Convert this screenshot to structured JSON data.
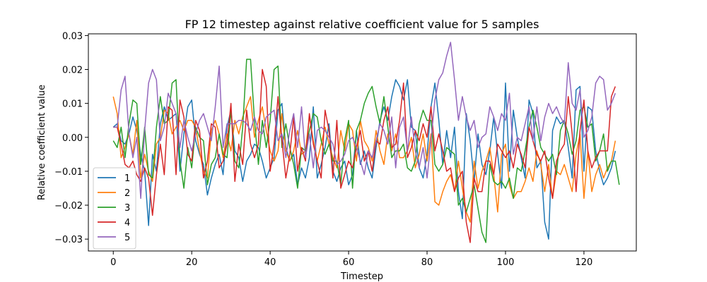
{
  "chart_data": {
    "type": "line",
    "title": "FP 12 timestep against relative coefficient value for 5 samples",
    "xlabel": "Timestep",
    "ylabel": "Relative coefficient value",
    "xlim": [
      -6.35,
      133.35
    ],
    "ylim": [
      -0.0335,
      0.0305
    ],
    "xticks": [
      0,
      20,
      40,
      60,
      80,
      100,
      120
    ],
    "yticks": [
      -0.03,
      -0.02,
      -0.01,
      0.0,
      0.01,
      0.02,
      0.03
    ],
    "xtick_labels": [
      "0",
      "20",
      "40",
      "60",
      "80",
      "100",
      "120"
    ],
    "ytick_labels": [
      "−0.03",
      "−0.02",
      "−0.01",
      "0.00",
      "0.01",
      "0.02",
      "0.03"
    ],
    "grid": false,
    "legend_position": "lower-left",
    "series": [
      {
        "name": "1",
        "color": "#1f77b4",
        "values": [
          0.003,
          0.004,
          -0.001,
          -0.002,
          0.001,
          0.006,
          0.002,
          -0.005,
          -0.01,
          -0.026,
          -0.005,
          -0.01,
          0.004,
          0.009,
          0.005,
          0.006,
          0.007,
          -0.01,
          0.001,
          0.009,
          0.011,
          -0.001,
          -0.005,
          -0.008,
          -0.017,
          -0.012,
          -0.008,
          -0.005,
          -0.011,
          0.003,
          0.008,
          -0.004,
          -0.006,
          -0.013,
          -0.007,
          -0.005,
          -0.002,
          -0.003,
          -0.007,
          -0.012,
          -0.009,
          -0.006,
          0.008,
          0.01,
          -0.003,
          -0.007,
          -0.005,
          -0.014,
          -0.009,
          -0.012,
          -0.006,
          0.009,
          -0.012,
          -0.008,
          -0.003,
          0.004,
          -0.01,
          -0.013,
          -0.009,
          -0.007,
          -0.014,
          -0.011,
          0.002,
          -0.008,
          -0.004,
          -0.009,
          -0.012,
          -0.003,
          0.005,
          0.009,
          0.005,
          0.012,
          0.017,
          0.015,
          0.011,
          0.017,
          0.003,
          0.002,
          -0.009,
          -0.012,
          -0.005,
          0.009,
          0.016,
          0.005,
          -0.008,
          0.002,
          -0.006,
          0.003,
          -0.016,
          -0.024,
          0.007,
          -0.001,
          -0.013,
          0.001,
          -0.008,
          -0.011,
          -0.004,
          0.006,
          -0.005,
          -0.015,
          0.016,
          -0.01,
          0.008,
          0.0,
          -0.006,
          -0.012,
          0.011,
          0.007,
          -0.009,
          -0.007,
          -0.025,
          -0.03,
          0.002,
          0.006,
          0.004,
          0.005,
          -0.003,
          -0.012,
          0.014,
          0.015,
          -0.01,
          0.009,
          0.008,
          -0.004,
          -0.01,
          -0.014,
          -0.012,
          -0.009,
          -0.004
        ]
      },
      {
        "name": "2",
        "color": "#ff7f0e",
        "values": [
          0.012,
          0.007,
          -0.006,
          -0.003,
          0.001,
          -0.005,
          0.005,
          -0.012,
          -0.005,
          -0.01,
          -0.013,
          -0.002,
          0.0,
          0.008,
          0.007,
          0.001,
          0.003,
          0.005,
          0.002,
          0.005,
          0.005,
          0.003,
          -0.004,
          -0.01,
          -0.012,
          0.002,
          0.005,
          0.001,
          -0.006,
          0.001,
          -0.004,
          0.005,
          0.001,
          0.006,
          0.009,
          0.012,
          0.0,
          0.005,
          0.009,
          0.002,
          -0.004,
          -0.007,
          -0.004,
          0.007,
          -0.004,
          -0.007,
          -0.004,
          0.002,
          -0.005,
          -0.004,
          0.006,
          -0.001,
          -0.007,
          -0.002,
          0.003,
          -0.002,
          -0.006,
          -0.009,
          0.002,
          -0.004,
          0.004,
          0.002,
          -0.007,
          0.005,
          -0.001,
          -0.003,
          -0.007,
          0.002,
          -0.004,
          -0.008,
          0.001,
          -0.004,
          0.001,
          -0.006,
          -0.006,
          -0.004,
          0.0,
          -0.009,
          -0.005,
          0.001,
          -0.007,
          0.001,
          -0.019,
          -0.02,
          -0.016,
          -0.013,
          -0.011,
          -0.016,
          -0.007,
          -0.015,
          -0.022,
          -0.025,
          -0.007,
          -0.015,
          -0.01,
          -0.007,
          -0.003,
          -0.011,
          -0.022,
          -0.005,
          -0.002,
          -0.014,
          -0.018,
          -0.016,
          -0.016,
          -0.013,
          -0.009,
          -0.013,
          -0.004,
          -0.008,
          -0.016,
          -0.008,
          -0.018,
          -0.01,
          -0.011,
          -0.008,
          -0.012,
          -0.016,
          -0.005,
          0.001,
          -0.018,
          -0.004,
          -0.016,
          -0.011,
          -0.008,
          -0.012,
          -0.009,
          -0.007,
          -0.001
        ]
      },
      {
        "name": "3",
        "color": "#2ca02c",
        "values": [
          -0.001,
          -0.003,
          0.003,
          -0.006,
          0.004,
          0.011,
          0.01,
          -0.008,
          0.003,
          -0.011,
          -0.012,
          0.003,
          0.012,
          0.004,
          0.005,
          0.016,
          0.017,
          -0.007,
          -0.015,
          -0.003,
          -0.009,
          0.003,
          0.0,
          -0.001,
          -0.014,
          -0.008,
          -0.006,
          0.001,
          -0.005,
          -0.006,
          0.008,
          -0.007,
          -0.009,
          0.003,
          0.023,
          0.023,
          0.005,
          -0.008,
          0.005,
          -0.003,
          0.005,
          0.02,
          0.021,
          -0.003,
          0.004,
          -0.003,
          -0.008,
          -0.015,
          -0.003,
          -0.004,
          0.002,
          0.007,
          0.006,
          -0.001,
          -0.005,
          -0.002,
          -0.007,
          -0.007,
          -0.014,
          -0.001,
          0.005,
          -0.015,
          0.002,
          0.005,
          0.01,
          0.013,
          0.015,
          0.009,
          0.004,
          0.012,
          0.003,
          -0.006,
          -0.004,
          -0.004,
          -0.002,
          -0.009,
          -0.01,
          -0.007,
          0.004,
          0.008,
          0.005,
          0.005,
          -0.008,
          -0.01,
          -0.008,
          -0.003,
          -0.004,
          -0.005,
          -0.02,
          -0.018,
          -0.022,
          -0.018,
          -0.014,
          -0.021,
          -0.028,
          -0.031,
          -0.008,
          -0.013,
          -0.014,
          -0.013,
          -0.015,
          -0.012,
          -0.018,
          -0.009,
          -0.01,
          -0.004,
          0.003,
          0.008,
          0.003,
          -0.003,
          -0.005,
          -0.007,
          -0.005,
          -0.011,
          0.002,
          0.005,
          0.001,
          -0.005,
          -0.001,
          0.008,
          0.009,
          0.003,
          0.004,
          -0.007,
          -0.004,
          0.001,
          -0.01,
          -0.007,
          -0.007,
          -0.014
        ]
      },
      {
        "name": "4",
        "color": "#d62728",
        "values": [
          0.003,
          0.003,
          -0.002,
          -0.008,
          -0.009,
          -0.007,
          -0.011,
          -0.013,
          -0.009,
          -0.012,
          -0.023,
          -0.011,
          -0.002,
          -0.011,
          0.009,
          0.008,
          -0.011,
          0.011,
          0.006,
          -0.005,
          -0.007,
          0.005,
          0.002,
          -0.012,
          -0.007,
          0.004,
          0.003,
          -0.009,
          -0.007,
          -0.002,
          0.01,
          -0.013,
          -0.002,
          -0.008,
          0.008,
          -0.002,
          -0.006,
          -0.002,
          0.02,
          0.015,
          -0.01,
          -0.002,
          0.012,
          -0.001,
          -0.012,
          -0.005,
          0.006,
          -0.01,
          -0.003,
          -0.007,
          0.007,
          -0.002,
          -0.007,
          -0.012,
          0.008,
          0.002,
          -0.012,
          0.005,
          -0.015,
          -0.011,
          -0.007,
          -0.009,
          -0.003,
          0.002,
          -0.007,
          -0.004,
          -0.01,
          -0.001,
          -0.002,
          0.005,
          0.009,
          -0.003,
          -0.002,
          0.005,
          0.016,
          -0.006,
          -0.003,
          0.002,
          -0.001,
          0.004,
          0.0,
          0.009,
          -0.004,
          0.001,
          -0.004,
          -0.01,
          -0.009,
          -0.016,
          -0.012,
          -0.01,
          -0.025,
          -0.031,
          -0.012,
          -0.016,
          -0.016,
          -0.007,
          -0.007,
          -0.011,
          -0.002,
          -0.004,
          -0.006,
          -0.004,
          -0.009,
          -0.002,
          -0.005,
          -0.009,
          0.003,
          -0.001,
          -0.005,
          -0.007,
          -0.004,
          -0.012,
          -0.018,
          -0.007,
          -0.004,
          -0.002,
          0.012,
          0.001,
          -0.016,
          0.002,
          0.011,
          -0.004,
          -0.009,
          -0.006,
          -0.004,
          -0.004,
          -0.004,
          0.012,
          0.015
        ]
      },
      {
        "name": "5",
        "color": "#9467bd",
        "values": [
          0.003,
          0.003,
          0.014,
          0.018,
          0.001,
          -0.006,
          0.0,
          -0.018,
          0.002,
          0.016,
          0.02,
          0.017,
          -0.001,
          0.003,
          0.013,
          0.01,
          0.007,
          -0.003,
          0.005,
          0.0,
          -0.004,
          0.001,
          0.005,
          0.007,
          0.003,
          -0.001,
          0.009,
          0.021,
          -0.003,
          0.004,
          0.004,
          0.004,
          0.005,
          0.005,
          0.004,
          0.002,
          0.006,
          0.002,
          0.001,
          0.006,
          0.007,
          0.008,
          -0.001,
          0.001,
          -0.006,
          0.002,
          0.007,
          -0.003,
          0.009,
          -0.006,
          0.001,
          -0.009,
          0.002,
          0.003,
          0.002,
          0.0,
          -0.002,
          -0.008,
          -0.007,
          -0.005,
          -0.001,
          0.0,
          -0.003,
          -0.007,
          -0.011,
          -0.004,
          -0.006,
          -0.001,
          0.004,
          0.002,
          -0.002,
          0.006,
          -0.009,
          0.003,
          0.006,
          -0.004,
          0.006,
          -0.004,
          -0.009,
          -0.003,
          -0.012,
          -0.001,
          0.011,
          0.017,
          0.019,
          0.024,
          0.028,
          0.017,
          0.005,
          0.012,
          0.006,
          0.002,
          0.005,
          -0.003,
          0.0,
          0.001,
          0.009,
          0.006,
          0.002,
          0.007,
          0.005,
          0.013,
          -0.005,
          0.0,
          -0.001,
          0.004,
          0.009,
          -0.001,
          0.009,
          -0.001,
          0.006,
          0.01,
          0.007,
          0.009,
          0.006,
          0.004,
          0.022,
          0.01,
          0.008,
          0.014,
          0.0,
          0.002,
          0.006,
          0.016,
          0.018,
          0.017,
          0.008,
          0.01,
          0.013
        ]
      }
    ]
  }
}
